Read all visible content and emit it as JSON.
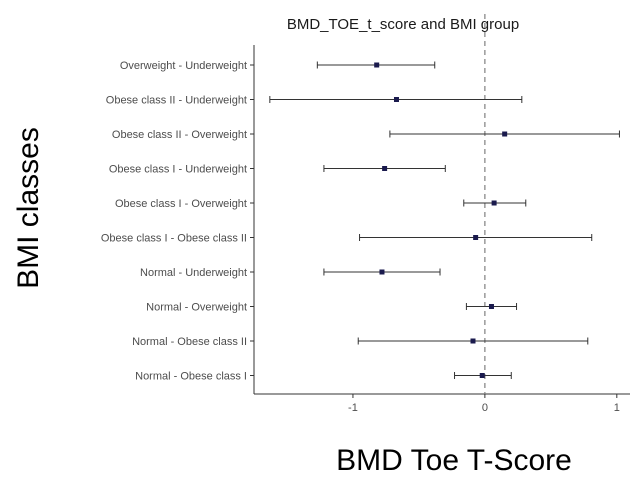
{
  "chart_data": {
    "type": "scatter",
    "title": "BMD_TOE_t_score and BMI group",
    "xlabel": "BMD Toe T-Score",
    "ylabel": "BMI classes",
    "xlim": [
      -1.75,
      1.1
    ],
    "x_ticks": [
      -1,
      0,
      1
    ],
    "x_tick_labels": [
      "-1",
      "0",
      "1"
    ],
    "reference_line": {
      "x": 0,
      "style": "dashed",
      "color": "#808080"
    },
    "grid": false,
    "categories": [
      "Overweight - Underweight",
      "Obese class II - Underweight",
      "Obese class II - Overweight",
      "Obese class I - Underweight",
      "Obese class I - Overweight",
      "Obese class I - Obese class II",
      "Normal - Underweight",
      "Normal - Overweight",
      "Normal - Obese class II",
      "Normal - Obese class I"
    ],
    "series": [
      {
        "estimate": [
          -0.82,
          -0.67,
          0.15,
          -0.76,
          0.07,
          -0.07,
          -0.78,
          0.05,
          -0.09,
          -0.02
        ],
        "lower": [
          -1.27,
          -1.63,
          -0.72,
          -1.22,
          -0.16,
          -0.95,
          -1.22,
          -0.14,
          -0.96,
          -0.23
        ],
        "upper": [
          -0.38,
          0.28,
          1.02,
          -0.3,
          0.31,
          0.81,
          -0.34,
          0.24,
          0.78,
          0.2
        ]
      }
    ],
    "colors": {
      "point": "#1a1a4d",
      "error_bar": "#333333",
      "axis": "#333333"
    }
  }
}
